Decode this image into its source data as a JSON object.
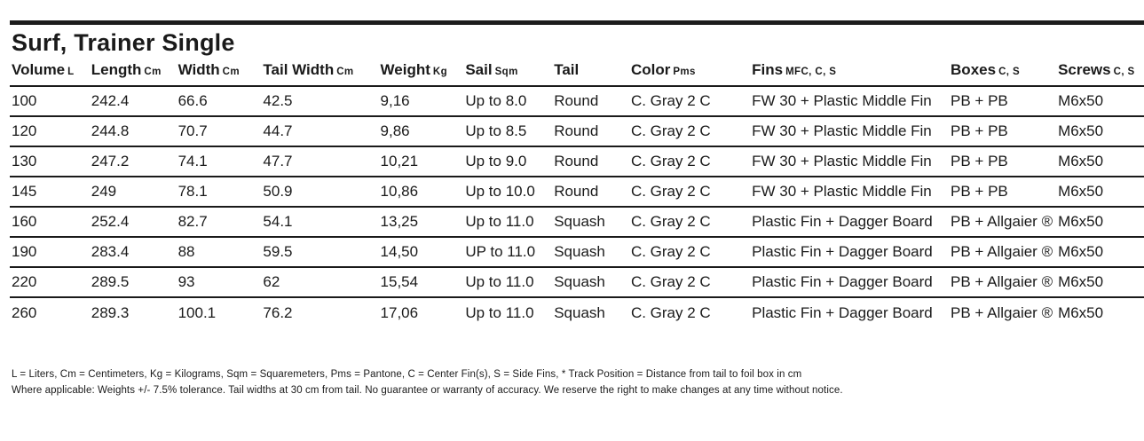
{
  "title": "Surf, Trainer Single",
  "colors": {
    "background": "#ffffff",
    "text": "#1a1a1a",
    "rule": "#1a1a1a",
    "top_bar": "#1c1c1c"
  },
  "table": {
    "columns": [
      {
        "label": "Volume",
        "unit": "L"
      },
      {
        "label": "Length",
        "unit": "Cm"
      },
      {
        "label": "Width",
        "unit": "Cm"
      },
      {
        "label": "Tail Width",
        "unit": "Cm"
      },
      {
        "label": "Weight",
        "unit": "Kg"
      },
      {
        "label": "Sail",
        "unit": "Sqm"
      },
      {
        "label": "Tail",
        "unit": ""
      },
      {
        "label": "Color",
        "unit": "Pms"
      },
      {
        "label": "Fins",
        "unit": "MFC, C, S"
      },
      {
        "label": "Boxes",
        "unit": "C, S"
      },
      {
        "label": "Screws",
        "unit": "C, S"
      }
    ],
    "rows": [
      {
        "cells": [
          "100",
          "242.4",
          "66.6",
          "42.5",
          "9,16",
          "Up to 8.0",
          "Round",
          "C. Gray 2 C",
          "FW 30 + Plastic Middle Fin",
          "PB + PB",
          "M6x50"
        ]
      },
      {
        "cells": [
          "120",
          "244.8",
          "70.7",
          "44.7",
          "9,86",
          "Up to 8.5",
          "Round",
          "C. Gray 2 C",
          "FW 30 + Plastic Middle Fin",
          "PB + PB",
          "M6x50"
        ]
      },
      {
        "cells": [
          "130",
          "247.2",
          "74.1",
          "47.7",
          "10,21",
          "Up to 9.0",
          "Round",
          "C. Gray 2 C",
          "FW 30 + Plastic Middle Fin",
          "PB + PB",
          "M6x50"
        ]
      },
      {
        "cells": [
          "145",
          "249",
          "78.1",
          "50.9",
          "10,86",
          "Up to 10.0",
          "Round",
          "C. Gray 2 C",
          "FW 30 + Plastic Middle Fin",
          "PB + PB",
          "M6x50"
        ]
      },
      {
        "cells": [
          "160",
          "252.4",
          "82.7",
          "54.1",
          "13,25",
          "Up to 11.0",
          "Squash",
          "C. Gray 2 C",
          "Plastic Fin + Dagger Board",
          "PB + Allgaier ®",
          "M6x50"
        ]
      },
      {
        "cells": [
          "190",
          "283.4",
          "88",
          "59.5",
          "14,50",
          "UP to 11.0",
          "Squash",
          "C. Gray 2 C",
          "Plastic Fin + Dagger Board",
          "PB + Allgaier ®",
          "M6x50"
        ]
      },
      {
        "cells": [
          "220",
          "289.5",
          "93",
          "62",
          "15,54",
          "Up to 11.0",
          "Squash",
          "C. Gray 2 C",
          "Plastic Fin + Dagger Board",
          "PB + Allgaier ®",
          "M6x50"
        ]
      },
      {
        "cells": [
          "260",
          "289.3",
          "100.1",
          "76.2",
          "17,06",
          "Up to 11.0",
          "Squash",
          "C. Gray 2 C",
          "Plastic Fin + Dagger Board",
          "PB + Allgaier ®",
          "M6x50"
        ]
      }
    ]
  },
  "footnotes": {
    "line1": "L = Liters, Cm = Centimeters, Kg = Kilograms, Sqm = Squaremeters, Pms = Pantone, C = Center Fin(s), S = Side Fins,  * Track Position = Distance from tail to foil box  in cm",
    "line2": "Where applicable: Weights +/- 7.5% tolerance. Tail widths at 30 cm from tail. No guarantee or warranty of accuracy. We reserve the right to make changes at any time without notice."
  }
}
